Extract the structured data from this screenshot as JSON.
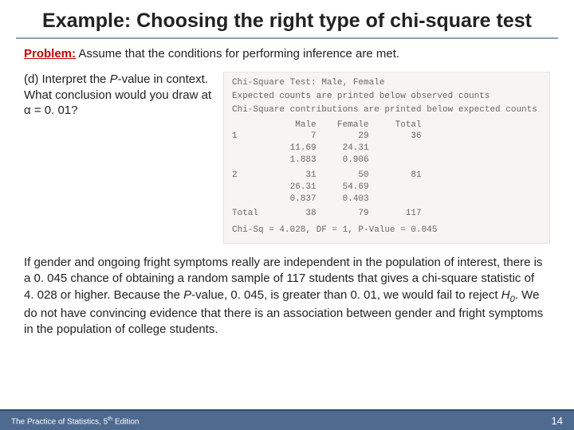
{
  "title": "Example: Choosing the right type of chi-square test",
  "problem": {
    "label": "Problem:",
    "label_color": "#c00000",
    "text": " Assume that the conditions for performing inference are met."
  },
  "question": {
    "part": "(d) Interpret the ",
    "pvar": "P",
    "rest1": "-value in context. What conclusion would you draw at α = 0. 01?"
  },
  "output": {
    "heading": "Chi-Square Test: Male, Female",
    "sub1": "Expected counts are printed below observed counts",
    "sub2": "Chi-Square contributions are printed below expected counts",
    "cols": "            Male    Female     Total",
    "r1a": "1              7        29        36",
    "r1b": "           11.69     24.31",
    "r1c": "           1.883     0.906",
    "r2a": "2             31        50        81",
    "r2b": "           26.31     54.69",
    "r2c": "           0.837     0.403",
    "rta": "Total         38        79       117",
    "result": "Chi-Sq = 4.028, DF = 1, P-Value = 0.045",
    "background": "#f7f5f4",
    "text_color": "#666666"
  },
  "interpretation": {
    "t1": "If gender and ongoing fright symptoms really are independent in the population of interest, there is a 0. 045 chance of obtaining a random sample of 117 students that gives a chi-square statistic of 4. 028 or higher. Because the ",
    "pvar": "P",
    "t2": "-value, 0. 045, is greater than 0. 01, we would fail to reject ",
    "hvar": "H",
    "hsub": "0",
    "t3": ". We do not have convincing evidence that there is an association between gender and fright symptoms in the population of college students."
  },
  "footer": {
    "left_a": "The Practice of Statistics, 5",
    "left_sup": "th",
    "left_b": " Edition",
    "page": "14",
    "bg_color": "#4f6a8f",
    "border_color": "#2f4a6f"
  },
  "title_underline_color": "#8aa0b8"
}
